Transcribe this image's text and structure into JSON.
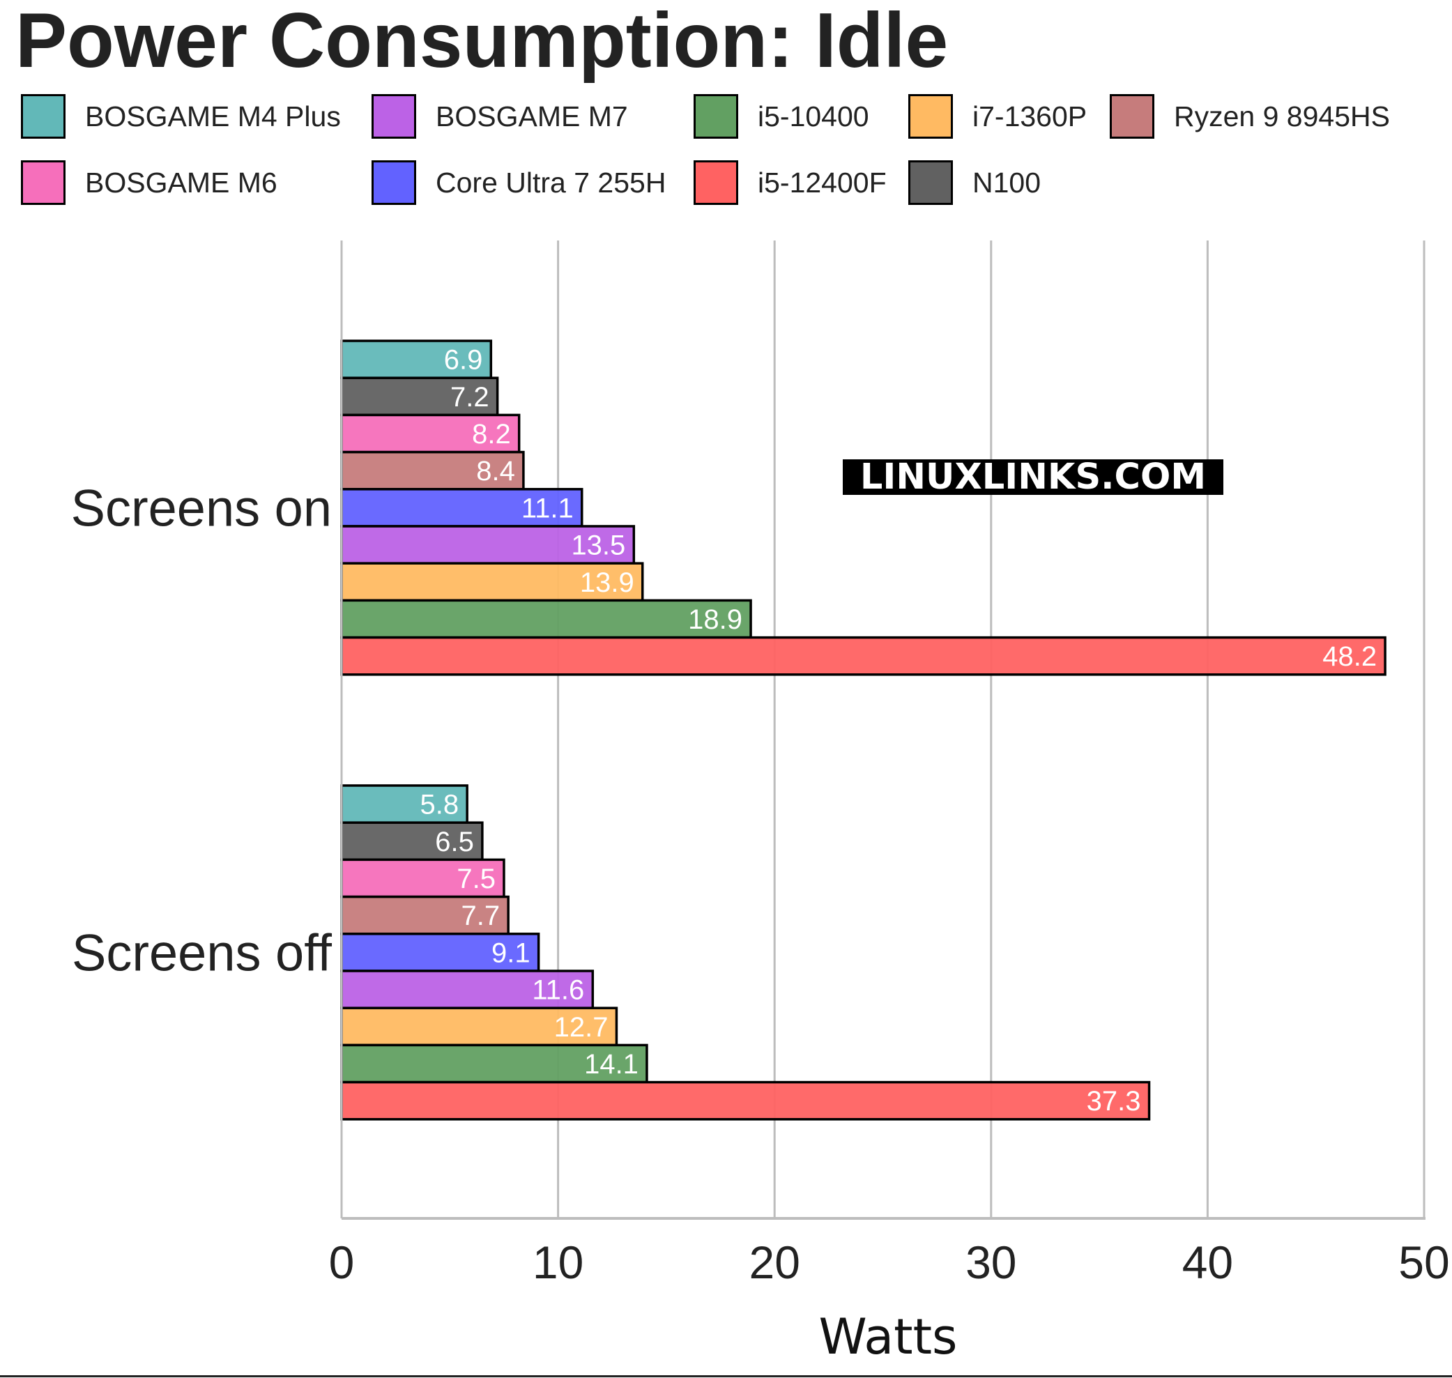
{
  "chart_data": {
    "type": "bar",
    "orientation": "horizontal",
    "title": "Power Consumption: Idle",
    "xlabel": "Watts",
    "ylabel": "",
    "xlim": [
      0,
      50
    ],
    "xticks": [
      "0",
      "10",
      "20",
      "30",
      "40",
      "50"
    ],
    "grid": "vertical",
    "legend_position": "top",
    "categories": [
      "Screens on",
      "Screens off"
    ],
    "series": [
      {
        "name": "BOSGAME M4 Plus",
        "color": "#62b8b8",
        "values": [
          6.9,
          5.8
        ]
      },
      {
        "name": "N100",
        "color": "#616161",
        "values": [
          7.2,
          6.5
        ]
      },
      {
        "name": "BOSGAME M6",
        "color": "#f66fbb",
        "values": [
          8.2,
          7.5
        ]
      },
      {
        "name": "Ryzen 9 8945HS",
        "color": "#c67c7c",
        "values": [
          8.4,
          7.7
        ]
      },
      {
        "name": "Core Ultra 7 255H",
        "color": "#6262ff",
        "values": [
          11.1,
          9.1
        ]
      },
      {
        "name": "BOSGAME M7",
        "color": "#bc62e6",
        "values": [
          13.5,
          11.6
        ]
      },
      {
        "name": "i7-1360P",
        "color": "#ffba62",
        "values": [
          13.9,
          12.7
        ]
      },
      {
        "name": "i5-10400",
        "color": "#62a062",
        "values": [
          18.9,
          14.1
        ]
      },
      {
        "name": "i5-12400F",
        "color": "#ff6262",
        "values": [
          48.2,
          37.3
        ]
      }
    ],
    "legend_order": [
      "BOSGAME M4 Plus",
      "BOSGAME M7",
      "i5-10400",
      "i7-1360P",
      "Ryzen 9 8945HS",
      "BOSGAME M6",
      "Core Ultra 7 255H",
      "i5-12400F",
      "N100"
    ],
    "watermark": "LINUXLINKS.COM"
  }
}
